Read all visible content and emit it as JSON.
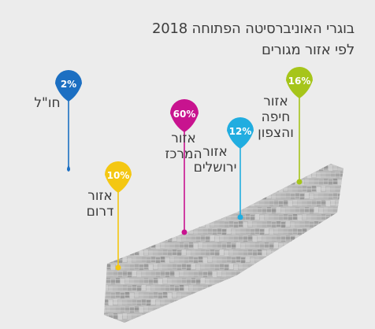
{
  "title": "בוגרי האוניברסיטה הפתוחה 2018",
  "subtitle": "לפי אזור מגורים",
  "chart_data": {
    "type": "pie",
    "title": "בוגרי האוניברסיטה הפתוחה 2018",
    "subtitle": "לפי אזור מגורים",
    "unit": "%",
    "categories": [
      {
        "name": "חו\"ל",
        "lines": [
          "חו\"ל"
        ],
        "value": 2,
        "label": "2%",
        "color": "#1c6fc2"
      },
      {
        "name": "אזור דרום",
        "lines": [
          "אזור",
          "דרום"
        ],
        "value": 10,
        "label": "10%",
        "color": "#f4c712"
      },
      {
        "name": "אזור המרכז",
        "lines": [
          "אזור",
          "המרכז"
        ],
        "value": 60,
        "label": "60%",
        "color": "#c8138f"
      },
      {
        "name": "אזור ירושלים",
        "lines": [
          "אזור",
          "ירושלים"
        ],
        "value": 12,
        "label": "12%",
        "color": "#21ade0"
      },
      {
        "name": "אזור חיפה והצפון",
        "lines": [
          "אזור",
          "חיפה",
          "והצפון"
        ],
        "value": 16,
        "label": "16%",
        "color": "#a6c51a"
      }
    ]
  }
}
